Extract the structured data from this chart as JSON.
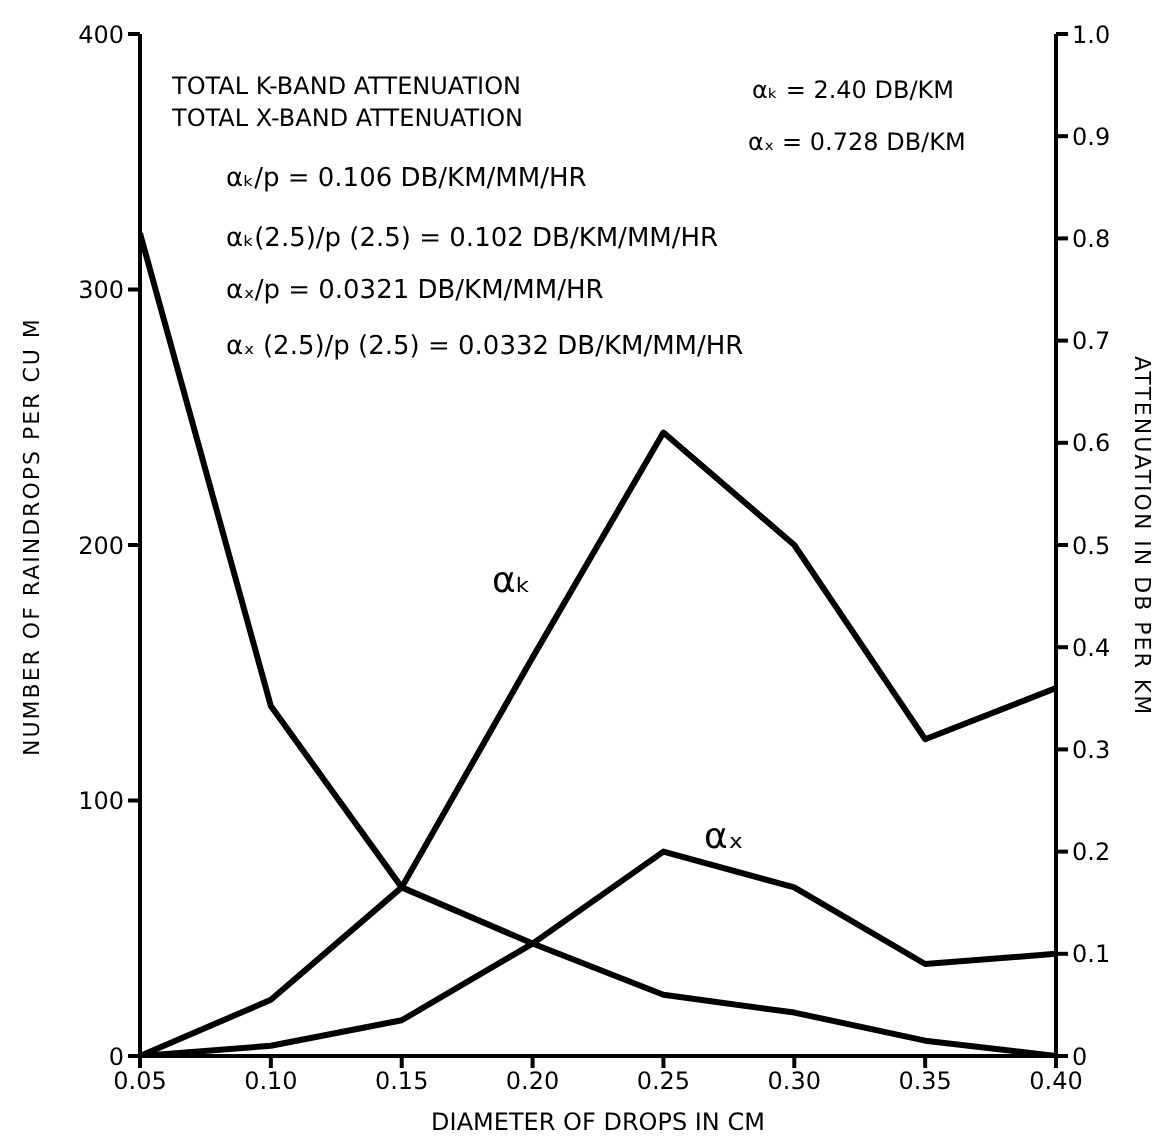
{
  "chart_data": {
    "type": "line",
    "xlabel": "DIAMETER OF DROPS IN CM",
    "ylabel": "NUMBER OF RAINDROPS PER CU M",
    "y2label": "ATTENUATION IN DB PER KM",
    "x": [
      0.05,
      0.1,
      0.15,
      0.2,
      0.25,
      0.3,
      0.35,
      0.4
    ],
    "series": [
      {
        "color": "#000000",
        "values": [
          322,
          137,
          66,
          44,
          24,
          17,
          6,
          0
        ]
      },
      {
        "color": "#000000",
        "axis": "y2",
        "values": [
          0,
          0.055,
          0.165,
          0.39,
          0.61,
          0.5,
          0.31,
          0.36
        ]
      },
      {
        "color": "#000000",
        "axis": "y2",
        "values": [
          0,
          0.01,
          0.035,
          0.11,
          0.2,
          0.165,
          0.09,
          0.1
        ]
      }
    ],
    "xlim": [
      0.05,
      0.4
    ],
    "xticks": [
      {
        "value": 0.05,
        "label": "0.05"
      },
      {
        "value": 0.1,
        "label": "0.10"
      },
      {
        "value": 0.15,
        "label": "0.15"
      },
      {
        "value": 0.2,
        "label": "0.20"
      },
      {
        "value": 0.25,
        "label": "0.25"
      },
      {
        "value": 0.3,
        "label": "0.30"
      },
      {
        "value": 0.35,
        "label": "0.35"
      },
      {
        "value": 0.4,
        "label": "0.40"
      }
    ],
    "ylim": [
      0,
      400
    ],
    "yticks": [
      0,
      100,
      200,
      300,
      400
    ],
    "y2lim": [
      0,
      1.0
    ],
    "y2ticks": [
      0,
      0.1,
      0.2,
      0.3,
      0.4,
      0.5,
      0.6,
      0.7,
      0.8,
      0.9,
      {
        "value": 1.0,
        "label": "1.0"
      }
    ],
    "marker": "none",
    "line_style": "solid",
    "annotations": [
      "TOTAL K-BAND ATTENUATION",
      "TOTAL X-BAND ATTENUATION",
      "αₖ = 2.40 DB/KM",
      "αₓ = 0.728 DB/KM",
      "αₖ/p = 0.106 DB/KM/MM/HR",
      "αₖ(2.5)/p (2.5) = 0.102 DB/KM/MM/HR",
      "αₓ/p = 0.0321 DB/KM/MM/HR",
      "αₓ (2.5)/p (2.5) = 0.0332 DB/KM/MM/HR",
      "αₖ",
      "αₓ"
    ]
  }
}
